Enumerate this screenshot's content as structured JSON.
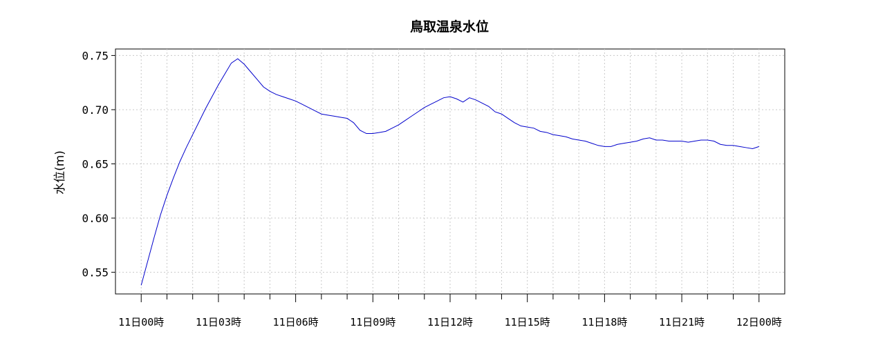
{
  "chart_data": {
    "type": "line",
    "title": "鳥取温泉水位",
    "ylabel": "水位(m)",
    "xlabel": "",
    "ylim": [
      0.53,
      0.756
    ],
    "xlim": [
      -1.0,
      25.0
    ],
    "yticks": [
      0.55,
      0.6,
      0.65,
      0.7,
      0.75
    ],
    "ytick_labels": [
      "0.55",
      "0.60",
      "0.65",
      "0.70",
      "0.75"
    ],
    "xticks_major": [
      0,
      3,
      6,
      9,
      12,
      15,
      18,
      21,
      24
    ],
    "xtick_labels": [
      "11日00時",
      "11日03時",
      "11日06時",
      "11日09時",
      "11日12時",
      "11日15時",
      "11日18時",
      "11日21時",
      "12日00時"
    ],
    "xticks_minor": [
      1,
      2,
      4,
      5,
      7,
      8,
      10,
      11,
      13,
      14,
      16,
      17,
      19,
      20,
      22,
      23
    ],
    "grid": true,
    "line_color": "#0000cc",
    "series": [
      {
        "x": [
          0.0,
          0.25,
          0.5,
          0.75,
          1.0,
          1.25,
          1.5,
          1.75,
          2.0,
          2.25,
          2.5,
          2.75,
          3.0,
          3.25,
          3.5,
          3.75,
          4.0,
          4.25,
          4.5,
          4.75,
          5.0,
          5.25,
          5.5,
          5.75,
          6.0,
          6.25,
          6.5,
          6.75,
          7.0,
          7.25,
          7.5,
          7.75,
          8.0,
          8.25,
          8.5,
          8.75,
          9.0,
          9.25,
          9.5,
          9.75,
          10.0,
          10.25,
          10.5,
          10.75,
          11.0,
          11.25,
          11.5,
          11.75,
          12.0,
          12.25,
          12.5,
          12.75,
          13.0,
          13.25,
          13.5,
          13.75,
          14.0,
          14.25,
          14.5,
          14.75,
          15.0,
          15.25,
          15.5,
          15.75,
          16.0,
          16.25,
          16.5,
          16.75,
          17.0,
          17.25,
          17.5,
          17.75,
          18.0,
          18.25,
          18.5,
          18.75,
          19.0,
          19.25,
          19.5,
          19.75,
          20.0,
          20.25,
          20.5,
          20.75,
          21.0,
          21.25,
          21.5,
          21.75,
          22.0,
          22.25,
          22.5,
          22.75,
          23.0,
          23.25,
          23.5,
          23.75,
          24.0
        ],
        "y": [
          0.538,
          0.56,
          0.582,
          0.603,
          0.621,
          0.637,
          0.652,
          0.665,
          0.677,
          0.689,
          0.701,
          0.712,
          0.723,
          0.733,
          0.743,
          0.747,
          0.742,
          0.735,
          0.728,
          0.721,
          0.717,
          0.714,
          0.712,
          0.71,
          0.708,
          0.705,
          0.702,
          0.699,
          0.696,
          0.695,
          0.694,
          0.693,
          0.692,
          0.688,
          0.681,
          0.678,
          0.678,
          0.679,
          0.68,
          0.683,
          0.686,
          0.69,
          0.694,
          0.698,
          0.702,
          0.705,
          0.708,
          0.711,
          0.712,
          0.71,
          0.707,
          0.711,
          0.709,
          0.706,
          0.703,
          0.698,
          0.696,
          0.692,
          0.688,
          0.685,
          0.684,
          0.683,
          0.68,
          0.679,
          0.677,
          0.676,
          0.675,
          0.673,
          0.672,
          0.671,
          0.669,
          0.667,
          0.666,
          0.666,
          0.668,
          0.669,
          0.67,
          0.671,
          0.673,
          0.674,
          0.672,
          0.672,
          0.671,
          0.671,
          0.671,
          0.67,
          0.671,
          0.672,
          0.672,
          0.671,
          0.668,
          0.667,
          0.667,
          0.666,
          0.665,
          0.664,
          0.666
        ]
      }
    ]
  }
}
